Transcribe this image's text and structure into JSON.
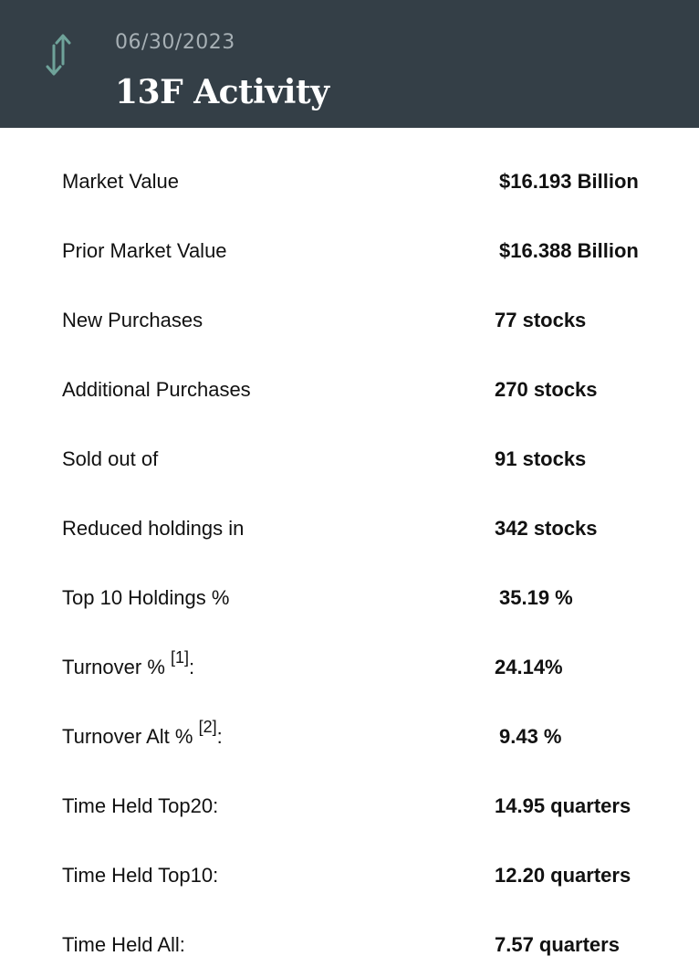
{
  "header": {
    "icon": "swap-vertical-arrows-icon",
    "date": "06/30/2023",
    "title": "13F Activity",
    "colors": {
      "background": "#343f47",
      "icon": "#6fa39a",
      "date": "#a7b0b5",
      "title": "#ffffff"
    }
  },
  "rows": [
    {
      "label": "Market Value",
      "value": "$16.193 Billion"
    },
    {
      "label": "Prior Market Value",
      "value": "$16.388 Billion"
    },
    {
      "label": "New Purchases",
      "value": "77 stocks"
    },
    {
      "label": "Additional Purchases",
      "value": "270 stocks"
    },
    {
      "label": "Sold out of",
      "value": "91 stocks"
    },
    {
      "label": "Reduced holdings in",
      "value": "342 stocks"
    },
    {
      "label": "Top 10 Holdings %",
      "value": "35.19 %"
    },
    {
      "label": "Turnover % ",
      "footnote": "[1]",
      "suffix": ":",
      "value": "24.14%"
    },
    {
      "label": "Turnover Alt % ",
      "footnote": "[2]",
      "suffix": ":",
      "value": "9.43 %"
    },
    {
      "label": "Time Held Top20:",
      "value": "14.95 quarters"
    },
    {
      "label": "Time Held Top10:",
      "value": "12.20 quarters"
    },
    {
      "label": "Time Held All:",
      "value": "7.57 quarters"
    }
  ]
}
